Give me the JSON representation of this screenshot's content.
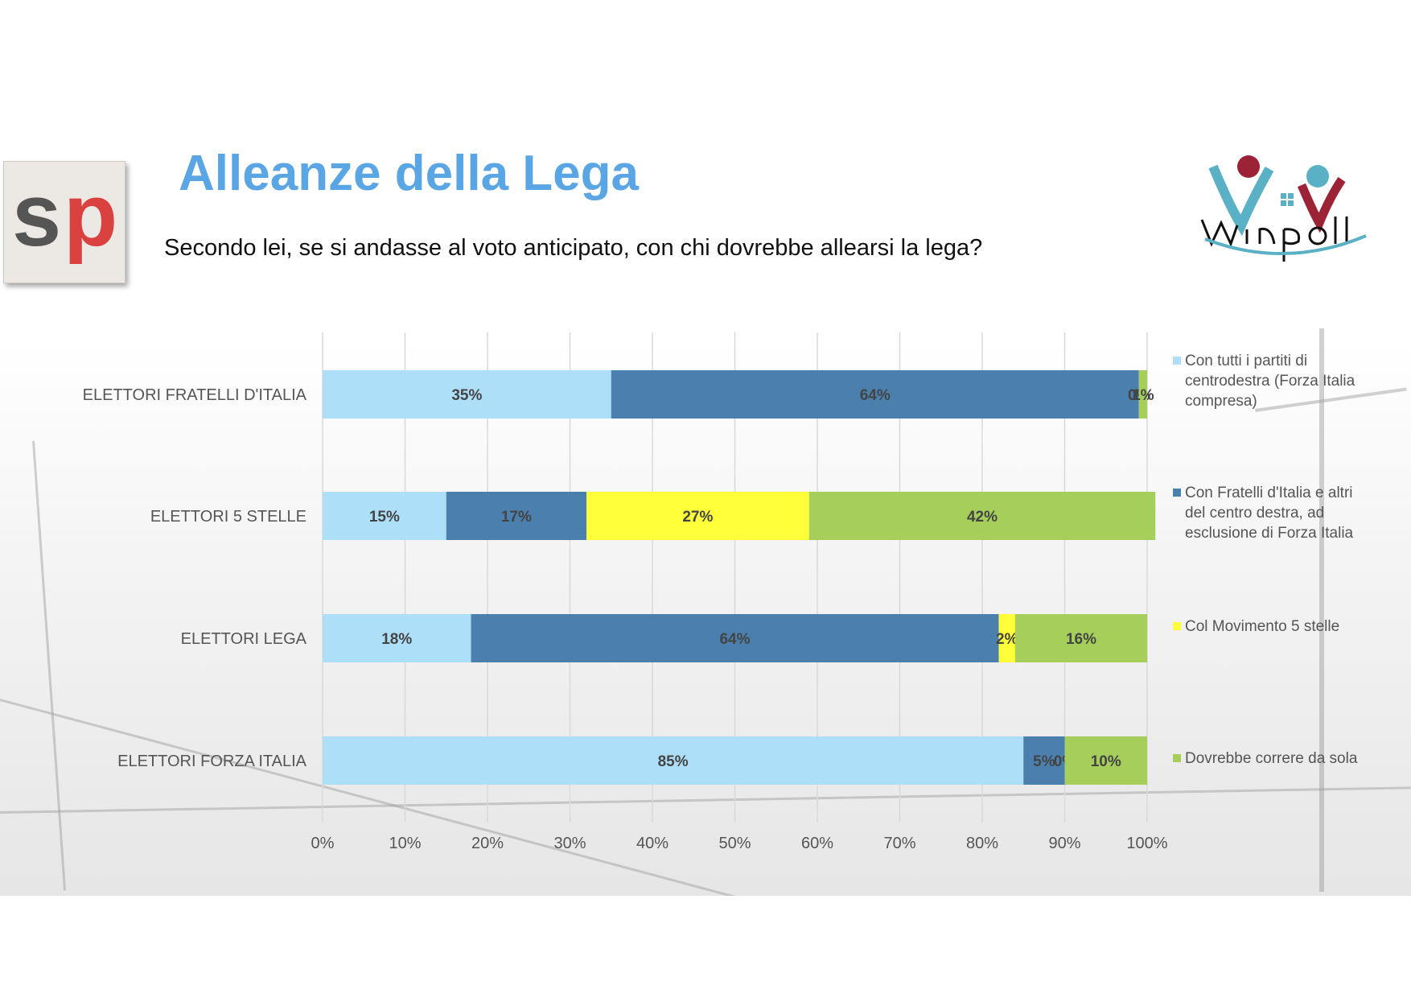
{
  "title": "Alleanze della Lega",
  "subtitle": "Secondo lei, se si andasse al voto anticipato, con chi dovrebbe allearsi la lega?",
  "logos": {
    "left": "sp",
    "left_s": "s",
    "left_p": "p",
    "right": "Winpoll"
  },
  "colors": {
    "series": [
      "#aedff9",
      "#4a7fae",
      "#ffff3a",
      "#a5cf5a"
    ],
    "title": "#5aa5e4"
  },
  "chart_data": {
    "type": "bar",
    "orientation": "horizontal",
    "stacked": "percent",
    "categories": [
      "ELETTORI FRATELLI D'ITALIA",
      "ELETTORI 5 STELLE",
      "ELETTORI LEGA",
      "ELETTORI FORZA ITALIA"
    ],
    "series": [
      {
        "name": "Con tutti i partiti di centrodestra (Forza Italia compresa)",
        "values": [
          35,
          15,
          18,
          85
        ],
        "labels": [
          "35%",
          "15%",
          "18%",
          "85%"
        ]
      },
      {
        "name": "Con Fratelli d'Italia e altri del centro destra, ad esclusione di Forza Italia",
        "values": [
          64,
          17,
          64,
          5
        ],
        "labels": [
          "64%",
          "17%",
          "64%",
          "5%"
        ]
      },
      {
        "name": "Col Movimento 5 stelle",
        "values": [
          0,
          27,
          2,
          0
        ],
        "labels": [
          "0%",
          "27%",
          "2%",
          "0%"
        ]
      },
      {
        "name": "Dovrebbe correre da sola",
        "values": [
          1,
          42,
          16,
          10
        ],
        "labels": [
          "1%",
          "42%",
          "16%",
          "10%"
        ]
      }
    ],
    "x_ticks": [
      "0%",
      "10%",
      "20%",
      "30%",
      "40%",
      "50%",
      "60%",
      "70%",
      "80%",
      "90%",
      "100%"
    ],
    "xlim": [
      0,
      100
    ],
    "grid": "vertical",
    "legend": "right"
  }
}
